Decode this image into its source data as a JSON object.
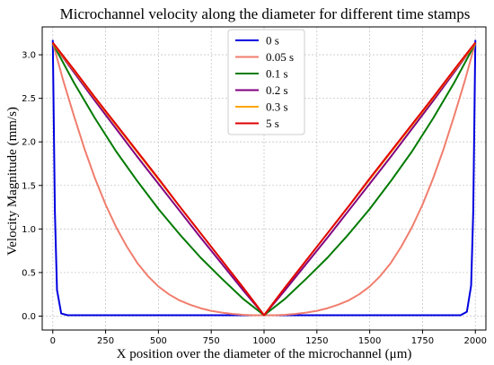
{
  "chart_data": {
    "type": "line",
    "title": "Microchannel velocity along the diameter for different time stamps",
    "xlabel": "X position over the diameter of the microchannel (μm)",
    "ylabel": "Velocity Magnitude (mm/s)",
    "xlim": [
      -50,
      2050
    ],
    "ylim": [
      -0.16,
      3.32
    ],
    "xticks": [
      0,
      250,
      500,
      750,
      1000,
      1250,
      1500,
      1750,
      2000
    ],
    "yticks": [
      0.0,
      0.5,
      1.0,
      1.5,
      2.0,
      2.5,
      3.0
    ],
    "ytick_labels": [
      "0.0",
      "0.5",
      "1.0",
      "1.5",
      "2.0",
      "2.5",
      "3.0"
    ],
    "grid": true,
    "legend_position": "top-center",
    "series": [
      {
        "name": "0 s",
        "color": "#0000e0",
        "x": [
          0,
          10,
          20,
          40,
          70,
          100,
          300,
          500,
          700,
          1000,
          1300,
          1500,
          1700,
          1900,
          1930,
          1960,
          1980,
          1990,
          2000
        ],
        "y": [
          3.17,
          1.2,
          0.3,
          0.03,
          0.01,
          0.01,
          0.01,
          0.01,
          0.01,
          0.01,
          0.01,
          0.01,
          0.01,
          0.01,
          0.01,
          0.05,
          0.35,
          1.2,
          3.17
        ]
      },
      {
        "name": "0.05 s",
        "color": "#f07e6e",
        "x": [
          0,
          50,
          100,
          150,
          200,
          250,
          300,
          350,
          400,
          450,
          500,
          550,
          600,
          650,
          700,
          750,
          800,
          850,
          900,
          950,
          1000,
          1050,
          1100,
          1150,
          1200,
          1250,
          1300,
          1350,
          1400,
          1450,
          1500,
          1550,
          1600,
          1650,
          1700,
          1750,
          1800,
          1850,
          1900,
          1950,
          2000
        ],
        "y": [
          3.14,
          2.7,
          2.3,
          1.92,
          1.58,
          1.28,
          1.02,
          0.8,
          0.61,
          0.46,
          0.34,
          0.25,
          0.18,
          0.13,
          0.09,
          0.06,
          0.04,
          0.025,
          0.015,
          0.01,
          0.01,
          0.01,
          0.015,
          0.025,
          0.04,
          0.06,
          0.09,
          0.13,
          0.18,
          0.25,
          0.34,
          0.46,
          0.61,
          0.8,
          1.02,
          1.28,
          1.58,
          1.92,
          2.3,
          2.7,
          3.14
        ]
      },
      {
        "name": "0.1 s",
        "color": "#007a00",
        "x": [
          0,
          100,
          200,
          300,
          400,
          500,
          600,
          700,
          800,
          900,
          1000,
          1100,
          1200,
          1300,
          1400,
          1500,
          1600,
          1700,
          1800,
          1900,
          2000
        ],
        "y": [
          3.13,
          2.68,
          2.27,
          1.89,
          1.55,
          1.23,
          0.94,
          0.67,
          0.43,
          0.2,
          0.01,
          0.2,
          0.43,
          0.67,
          0.94,
          1.23,
          1.55,
          1.89,
          2.27,
          2.68,
          3.13
        ]
      },
      {
        "name": "0.2 s",
        "color": "#800080",
        "x": [
          0,
          100,
          200,
          300,
          400,
          500,
          600,
          700,
          800,
          900,
          1000,
          1100,
          1200,
          1300,
          1400,
          1500,
          1600,
          1700,
          1800,
          1900,
          2000
        ],
        "y": [
          3.13,
          2.8,
          2.47,
          2.15,
          1.83,
          1.52,
          1.21,
          0.9,
          0.6,
          0.3,
          0.01,
          0.3,
          0.6,
          0.9,
          1.21,
          1.52,
          1.83,
          2.15,
          2.47,
          2.8,
          3.13
        ]
      },
      {
        "name": "0.3 s",
        "color": "#ffa500",
        "x": [
          0,
          100,
          200,
          300,
          400,
          500,
          600,
          700,
          800,
          900,
          1000,
          1100,
          1200,
          1300,
          1400,
          1500,
          1600,
          1700,
          1800,
          1900,
          2000
        ],
        "y": [
          3.13,
          2.82,
          2.5,
          2.19,
          1.88,
          1.57,
          1.26,
          0.95,
          0.64,
          0.33,
          0.01,
          0.33,
          0.64,
          0.95,
          1.26,
          1.57,
          1.88,
          2.19,
          2.5,
          2.82,
          3.13
        ]
      },
      {
        "name": "5 s",
        "color": "#e00000",
        "x": [
          0,
          100,
          200,
          300,
          400,
          500,
          600,
          700,
          800,
          900,
          1000,
          1100,
          1200,
          1300,
          1400,
          1500,
          1600,
          1700,
          1800,
          1900,
          2000
        ],
        "y": [
          3.14,
          2.83,
          2.51,
          2.2,
          1.89,
          1.58,
          1.26,
          0.95,
          0.64,
          0.33,
          0.01,
          0.33,
          0.64,
          0.95,
          1.26,
          1.58,
          1.89,
          2.2,
          2.51,
          2.83,
          3.14
        ]
      }
    ]
  }
}
